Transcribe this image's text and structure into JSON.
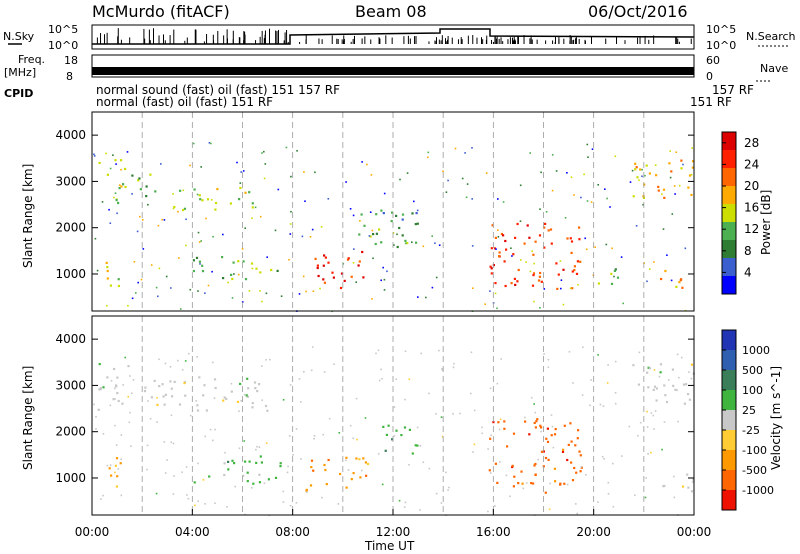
{
  "header": {
    "station": "McMurdo (fitACF)",
    "beam": "Beam 08",
    "date": "06/Oct/2016"
  },
  "noise_panel": {
    "left_label": "N.Sky",
    "right_label": "N.Search",
    "top_tick": "10^5",
    "bottom_tick": "10^0"
  },
  "freq_panel": {
    "left_label_1": "Freq.",
    "left_label_2": "[MHz]",
    "right_label": "Nave",
    "left_ticks": [
      "18",
      "8"
    ],
    "right_ticks": [
      "60",
      "0"
    ]
  },
  "cpid": {
    "label": "CPID",
    "text_row1": "normal sound (fast) oil (fast) 151 157 RF",
    "text_row2": "normal (fast) oil (fast) 151 RF",
    "right_row1": "157 RF",
    "right_row2": "151 RF"
  },
  "colors": {
    "power": [
      "#0000ff",
      "#3c5fd0",
      "#2e7d32",
      "#4caf50",
      "#ccdd00",
      "#ffaa00",
      "#ff6600",
      "#ff2000",
      "#dd0000"
    ],
    "velocity": [
      "#2034b4",
      "#2f5fb0",
      "#3a7f5a",
      "#3fb53f",
      "#c8c8c8",
      "#ffcc33",
      "#ff9900",
      "#ff6600",
      "#ee1100"
    ]
  },
  "chart_data": [
    {
      "type": "heatmap",
      "title": "Power",
      "xlabel": "Time UT",
      "ylabel": "Slant Range [km]",
      "x_ticks": [
        "00:00",
        "04:00",
        "08:00",
        "12:00",
        "16:00",
        "20:00",
        "00:00"
      ],
      "y_ticks": [
        "1000",
        "2000",
        "3000",
        "4000"
      ],
      "ylim": [
        200,
        4500
      ],
      "xlim_hours": [
        0,
        24
      ],
      "colorbar_label": "Power [dB]",
      "colorbar_ticks": [
        "4",
        "8",
        "12",
        "16",
        "20",
        "24",
        "28"
      ],
      "colorbar_range": [
        0,
        30
      ],
      "regions": [
        {
          "t0": 0.2,
          "t1": 1.3,
          "r0": 2500,
          "r1": 3500,
          "value": 14
        },
        {
          "t0": 0.5,
          "t1": 1.3,
          "r0": 700,
          "r1": 1500,
          "value": 16
        },
        {
          "t0": 1.5,
          "t1": 3.0,
          "r0": 2700,
          "r1": 3200,
          "value": 12
        },
        {
          "t0": 3.0,
          "t1": 6.5,
          "r0": 2400,
          "r1": 2900,
          "value": 14
        },
        {
          "t0": 4.0,
          "t1": 7.5,
          "r0": 900,
          "r1": 1400,
          "value": 12
        },
        {
          "t0": 8.5,
          "t1": 11.0,
          "r0": 700,
          "r1": 1500,
          "value": 26
        },
        {
          "t0": 10.0,
          "t1": 13.0,
          "r0": 1600,
          "r1": 2400,
          "value": 10
        },
        {
          "t0": 15.8,
          "t1": 19.5,
          "r0": 700,
          "r1": 2200,
          "value": 24
        },
        {
          "t0": 20.0,
          "t1": 21.0,
          "r0": 800,
          "r1": 1300,
          "value": 12
        },
        {
          "t0": 21.5,
          "t1": 24.0,
          "r0": 2600,
          "r1": 3500,
          "value": 18
        },
        {
          "t0": 22.5,
          "t1": 24.0,
          "r0": 700,
          "r1": 1100,
          "value": 20
        }
      ]
    },
    {
      "type": "heatmap",
      "title": "Velocity",
      "xlabel": "Time UT",
      "ylabel": "Slant Range [km]",
      "x_ticks": [
        "00:00",
        "04:00",
        "08:00",
        "12:00",
        "16:00",
        "20:00",
        "00:00"
      ],
      "y_ticks": [
        "1000",
        "2000",
        "3000",
        "4000"
      ],
      "ylim": [
        200,
        4500
      ],
      "xlim_hours": [
        0,
        24
      ],
      "colorbar_label": "Velocity [m s^-1]",
      "colorbar_ticks": [
        "1000",
        "500",
        "100",
        "25",
        "-25",
        "-100",
        "-500",
        "-1000"
      ],
      "regions": [
        {
          "t0": 0.2,
          "t1": 1.5,
          "r0": 2400,
          "r1": 3500,
          "value": 0
        },
        {
          "t0": 0.5,
          "t1": 1.3,
          "r0": 700,
          "r1": 1500,
          "value": -150
        },
        {
          "t0": 2.0,
          "t1": 7.0,
          "r0": 2400,
          "r1": 3200,
          "value": 0
        },
        {
          "t0": 4.0,
          "t1": 7.5,
          "r0": 900,
          "r1": 1500,
          "value": 150
        },
        {
          "t0": 8.5,
          "t1": 11.0,
          "r0": 700,
          "r1": 1500,
          "value": -200
        },
        {
          "t0": 11.5,
          "t1": 13.0,
          "r0": 1500,
          "r1": 2200,
          "value": 150
        },
        {
          "t0": 15.8,
          "t1": 19.5,
          "r0": 700,
          "r1": 2300,
          "value": -300
        },
        {
          "t0": 21.5,
          "t1": 24.0,
          "r0": 2600,
          "r1": 3500,
          "value": 0
        },
        {
          "t0": 22.5,
          "t1": 24.0,
          "r0": 700,
          "r1": 1100,
          "value": 0
        }
      ]
    }
  ]
}
